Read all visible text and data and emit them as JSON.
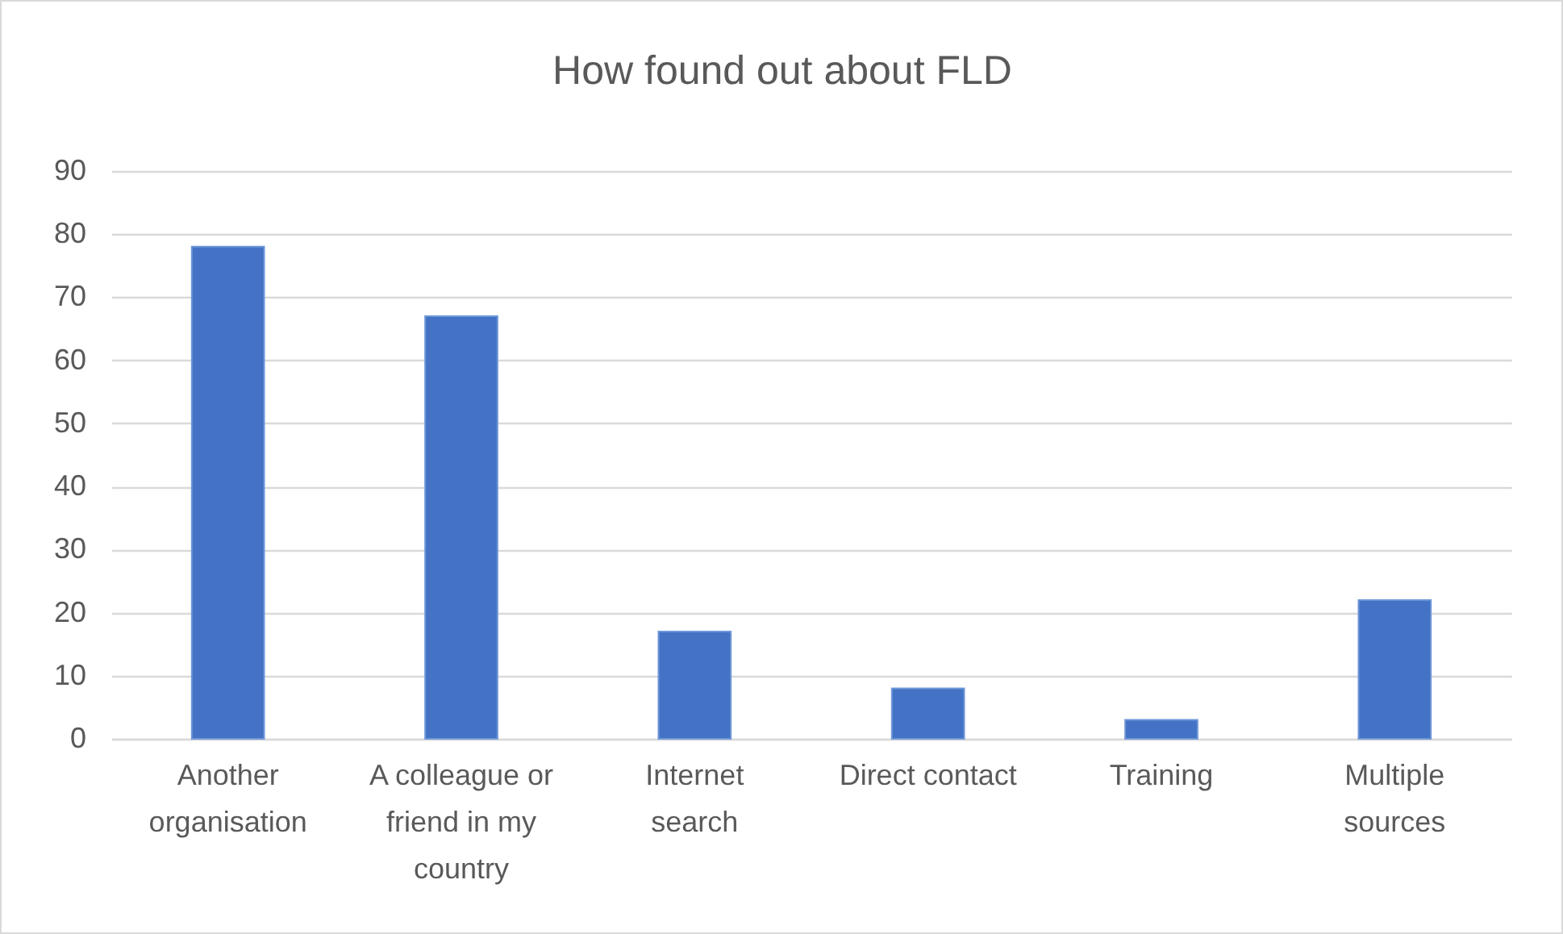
{
  "chart_data": {
    "type": "bar",
    "title": "How found out about FLD",
    "categories": [
      "Another organisation",
      "A colleague or friend in my country",
      "Internet search",
      "Direct contact",
      "Training",
      "Multiple sources"
    ],
    "values": [
      78,
      67,
      17,
      8,
      3,
      22
    ],
    "color": "#4472c4",
    "ylim": [
      0,
      90
    ],
    "yticks": [
      0,
      10,
      20,
      30,
      40,
      50,
      60,
      70,
      80,
      90
    ],
    "grid": "y"
  }
}
